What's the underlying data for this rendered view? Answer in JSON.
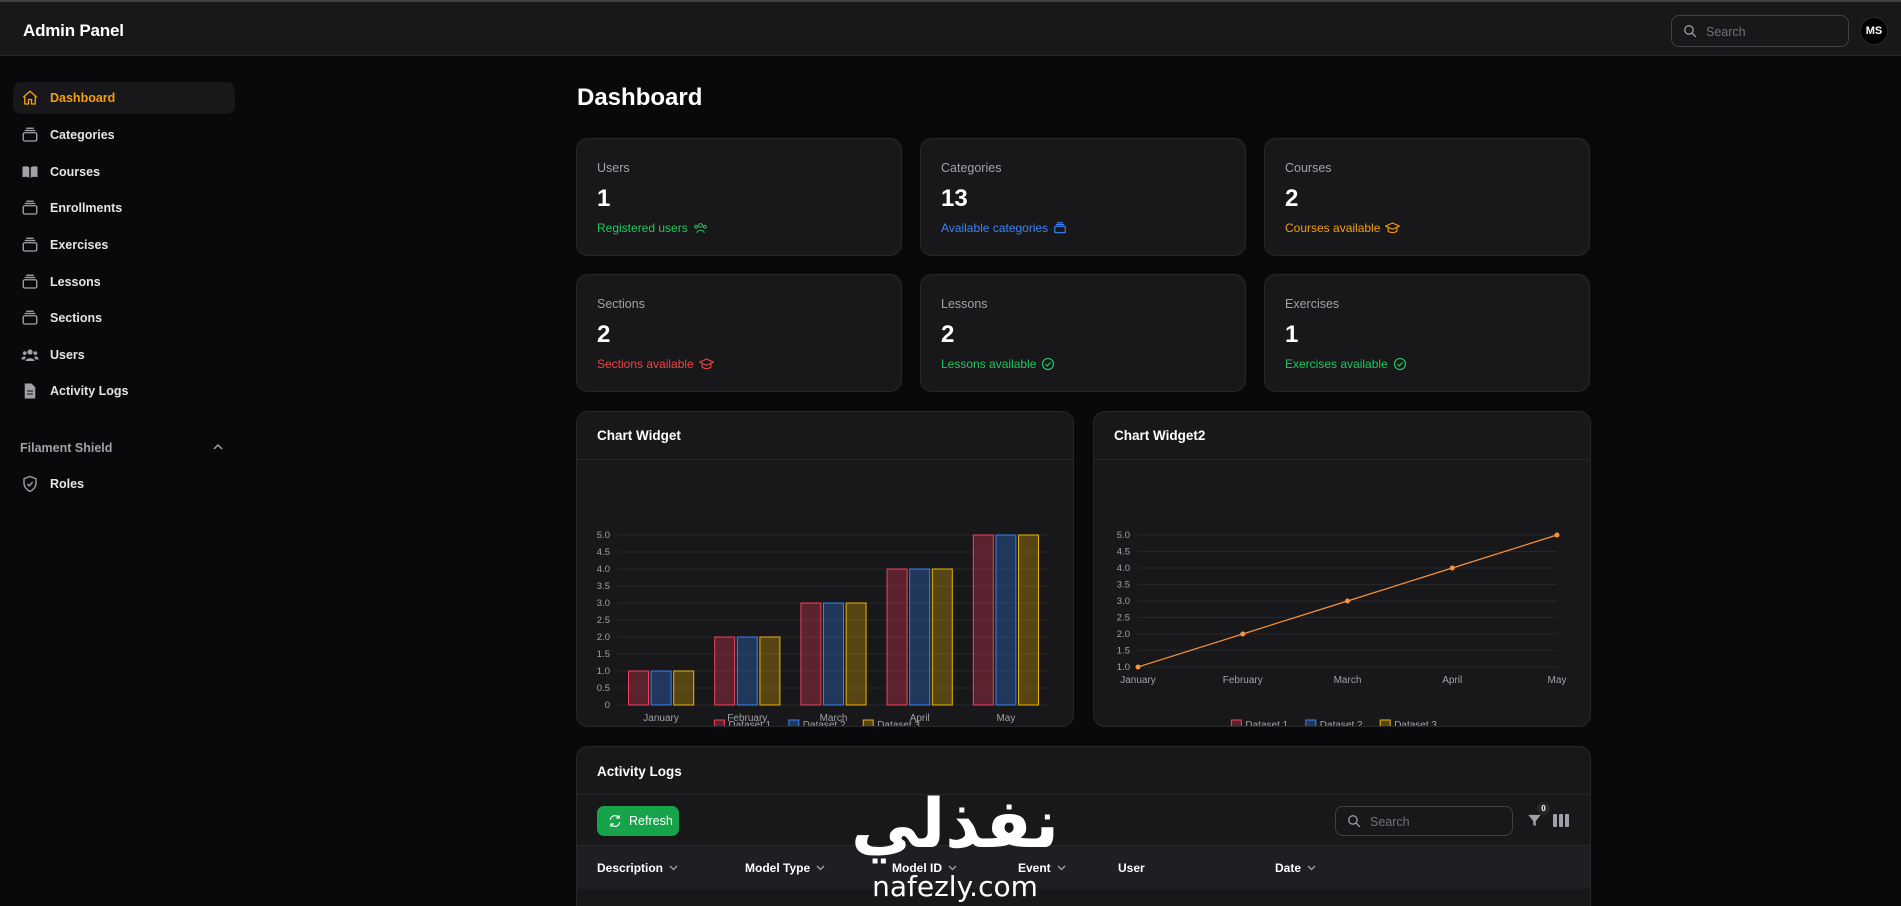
{
  "app": {
    "title": "Admin Panel",
    "avatar_initials": "MS"
  },
  "topbar": {
    "search_placeholder": "Search"
  },
  "sidebar": {
    "items": [
      {
        "label": "Dashboard",
        "icon": "home-icon",
        "active": true
      },
      {
        "label": "Categories",
        "icon": "rectangle-stack-icon"
      },
      {
        "label": "Courses",
        "icon": "book-open-icon"
      },
      {
        "label": "Enrollments",
        "icon": "rectangle-stack-icon"
      },
      {
        "label": "Exercises",
        "icon": "rectangle-stack-icon"
      },
      {
        "label": "Lessons",
        "icon": "rectangle-stack-icon"
      },
      {
        "label": "Sections",
        "icon": "rectangle-stack-icon"
      },
      {
        "label": "Users",
        "icon": "users-icon"
      },
      {
        "label": "Activity Logs",
        "icon": "document-icon"
      }
    ],
    "group": {
      "label": "Filament Shield",
      "items": [
        {
          "label": "Roles",
          "icon": "shield-check-icon"
        }
      ]
    }
  },
  "page": {
    "title": "Dashboard"
  },
  "stats": [
    {
      "label": "Users",
      "value": "1",
      "description": "Registered users",
      "color": "#22c55e",
      "icon": "user-group-icon"
    },
    {
      "label": "Categories",
      "value": "13",
      "description": "Available categories",
      "color": "#3b82f6",
      "icon": "rectangle-stack-icon"
    },
    {
      "label": "Courses",
      "value": "2",
      "description": "Courses available",
      "color": "#f59e0b",
      "icon": "academic-cap-icon"
    },
    {
      "label": "Sections",
      "value": "2",
      "description": "Sections available",
      "color": "#ef4444",
      "icon": "academic-cap-icon"
    },
    {
      "label": "Lessons",
      "value": "2",
      "description": "Lessons available",
      "color": "#22c55e",
      "icon": "check-circle-icon"
    },
    {
      "label": "Exercises",
      "value": "1",
      "description": "Exercises available",
      "color": "#22c55e",
      "icon": "check-circle-icon"
    }
  ],
  "widgets": {
    "chart1_title": "Chart Widget",
    "chart2_title": "Chart Widget2"
  },
  "chart_data": [
    {
      "type": "bar",
      "title": "Chart Widget",
      "categories": [
        "January",
        "February",
        "March",
        "April",
        "May"
      ],
      "series": [
        {
          "name": "Dataset 1",
          "values": [
            1,
            2,
            3,
            4,
            5
          ],
          "color": "#f43f5e"
        },
        {
          "name": "Dataset 2",
          "values": [
            1,
            2,
            3,
            4,
            5
          ],
          "color": "#3b82f6"
        },
        {
          "name": "Dataset 3",
          "values": [
            1,
            2,
            3,
            4,
            5
          ],
          "color": "#eab308"
        }
      ],
      "yticks": [
        "0",
        "0.5",
        "1.0",
        "1.5",
        "2.0",
        "2.5",
        "3.0",
        "3.5",
        "4.0",
        "4.5",
        "5.0"
      ],
      "ylim": [
        0,
        5
      ],
      "grid": true,
      "legend": "bottom"
    },
    {
      "type": "line",
      "title": "Chart Widget2",
      "categories": [
        "January",
        "February",
        "March",
        "April",
        "May"
      ],
      "series": [
        {
          "name": "Dataset 1",
          "values": [
            1,
            2,
            3,
            4,
            5
          ],
          "color": "#fb923c"
        }
      ],
      "legend_entries": [
        {
          "name": "Dataset 1",
          "color": "#f43f5e"
        },
        {
          "name": "Dataset 2",
          "color": "#3b82f6"
        },
        {
          "name": "Dataset 3",
          "color": "#eab308"
        }
      ],
      "yticks": [
        "1.0",
        "1.5",
        "2.0",
        "2.5",
        "3.0",
        "3.5",
        "4.0",
        "4.5",
        "5.0"
      ],
      "ylim": [
        1,
        5
      ],
      "grid": true,
      "legend": "bottom"
    }
  ],
  "activity": {
    "title": "Activity Logs",
    "refresh_label": "Refresh",
    "search_placeholder": "Search",
    "filter_count": "0",
    "columns": [
      "Description",
      "Model Type",
      "Model ID",
      "Event",
      "User",
      "Date"
    ]
  },
  "watermark": {
    "arabic": "نفذلي",
    "latin": "nafezly.com"
  }
}
